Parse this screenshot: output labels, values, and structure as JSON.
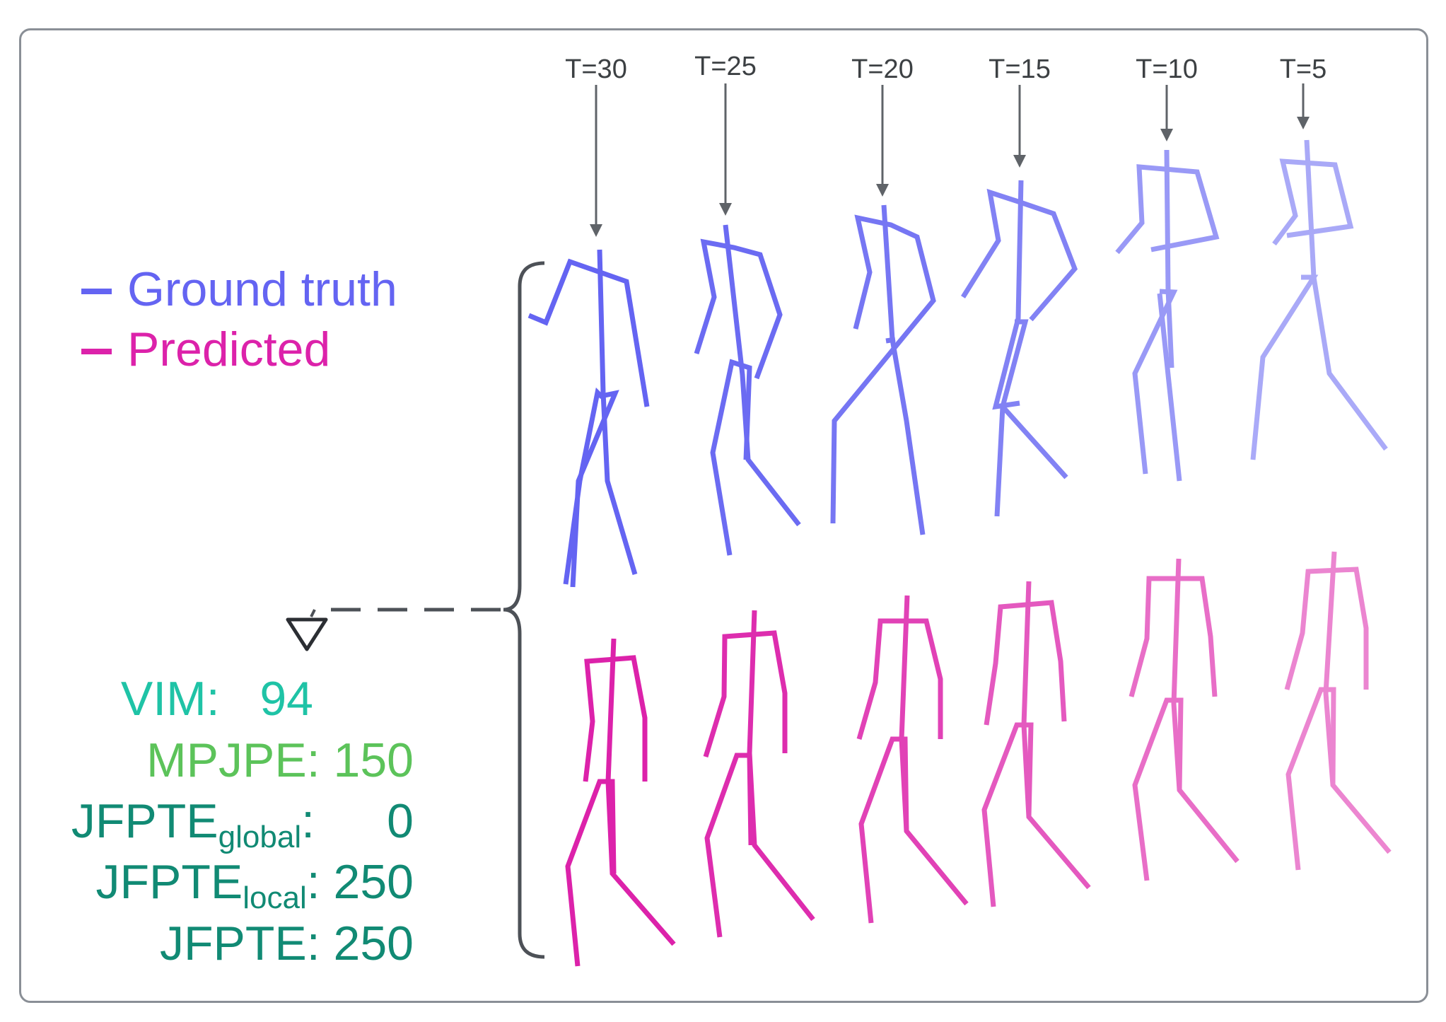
{
  "legend": [
    {
      "label": "Ground truth",
      "color": "#6464f2"
    },
    {
      "label": "Predicted",
      "color": "#dc22aa"
    }
  ],
  "time_labels": [
    "T=30",
    "T=25",
    "T=20",
    "T=15",
    "T=10",
    "T=5"
  ],
  "metrics": [
    {
      "name": "VIM",
      "sub": "",
      "value": "94",
      "color": "#1fc3a6"
    },
    {
      "name": "MPJPE",
      "sub": "",
      "value": "150",
      "color": "#5cc35a"
    },
    {
      "name": "JFPTE",
      "sub": "global",
      "value": "0",
      "color": "#118a74"
    },
    {
      "name": "JFPTE",
      "sub": "local",
      "value": "250",
      "color": "#118a74"
    },
    {
      "name": "JFPTE",
      "sub": "",
      "value": "250",
      "color": "#118a74"
    }
  ],
  "colors": {
    "ground_truth": "#6464f2",
    "predicted": "#dc22aa",
    "annotation": "#5f6368",
    "frame_border": "#8a8f96"
  },
  "icons": [
    "down-arrow-icon",
    "triangle-marker-icon",
    "curly-brace-icon"
  ]
}
